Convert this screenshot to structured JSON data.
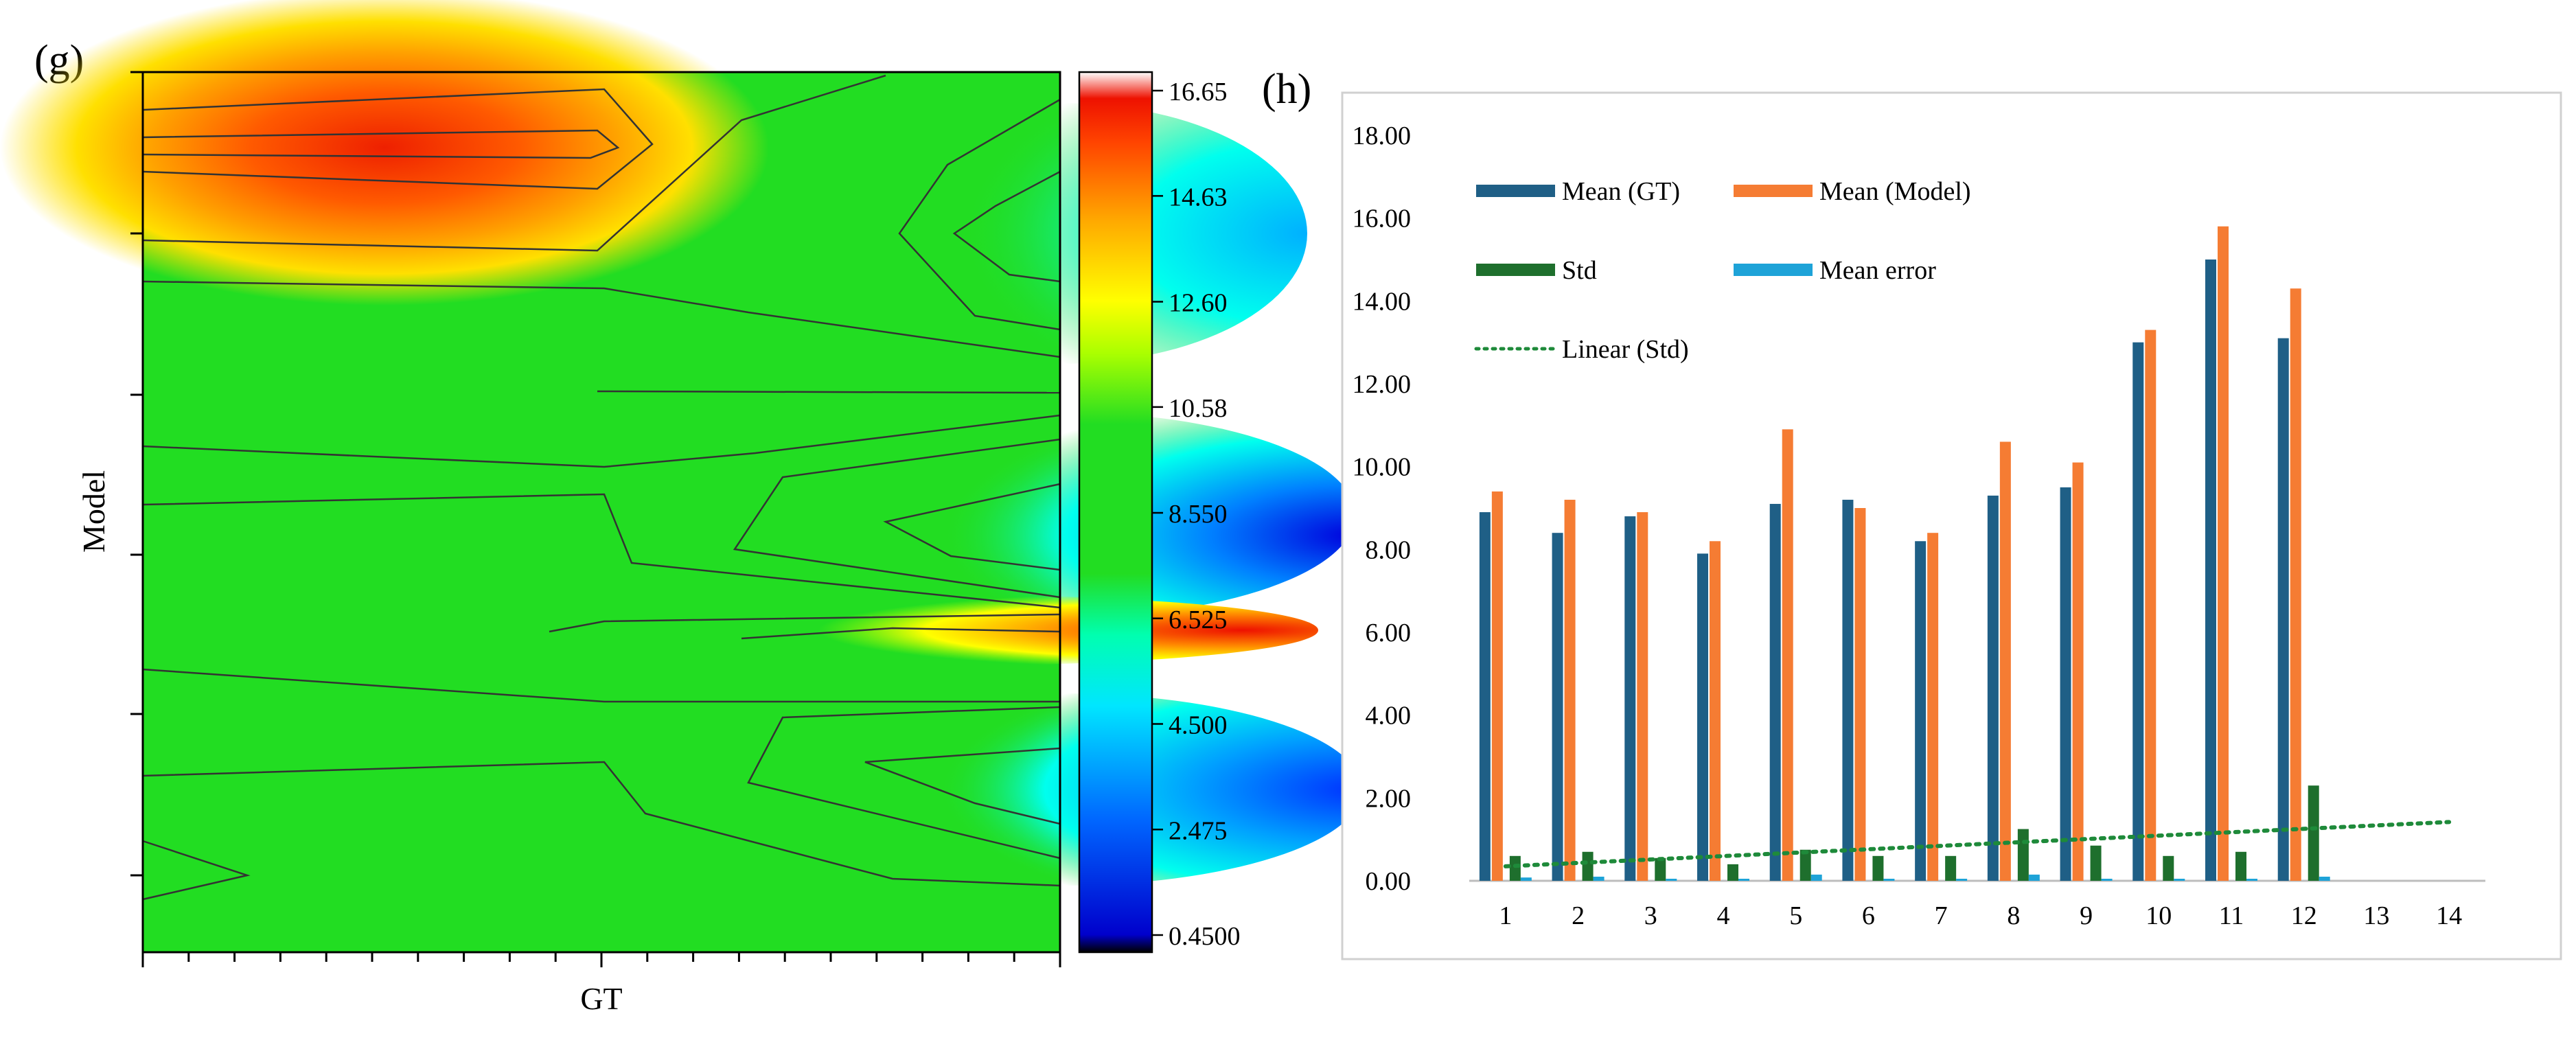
{
  "panel_g": {
    "label": "(g)",
    "xlabel": "GT",
    "ylabel": "Model",
    "colorbar_ticks": [
      "16.65",
      "14.63",
      "12.60",
      "10.58",
      "8.550",
      "6.525",
      "4.500",
      "2.475",
      "0.4500"
    ],
    "colorbar_range": [
      0.45,
      16.65
    ],
    "colors": {
      "green": "#22dd22",
      "contour_line": "#333333"
    }
  },
  "panel_h": {
    "label": "(h)",
    "chart_data": {
      "type": "bar",
      "categories": [
        "1",
        "2",
        "3",
        "4",
        "5",
        "6",
        "7",
        "8",
        "9",
        "10",
        "11",
        "12",
        "13",
        "14"
      ],
      "ylim": [
        0,
        18
      ],
      "yticks": [
        "0.00",
        "2.00",
        "4.00",
        "6.00",
        "8.00",
        "10.00",
        "12.00",
        "14.00",
        "16.00",
        "18.00"
      ],
      "series": [
        {
          "name": "Mean (GT)",
          "color": "#1f5f86",
          "values": [
            8.9,
            8.4,
            8.8,
            7.9,
            9.1,
            9.2,
            8.2,
            9.3,
            9.5,
            13.0,
            15.0,
            13.1,
            null,
            null
          ]
        },
        {
          "name": "Mean (Model)",
          "color": "#f57c33",
          "values": [
            9.4,
            9.2,
            8.9,
            8.2,
            10.9,
            9.0,
            8.4,
            10.6,
            10.1,
            13.3,
            15.8,
            14.3,
            null,
            null
          ]
        },
        {
          "name": "Std",
          "color": "#1e6f2d",
          "values": [
            0.6,
            0.7,
            0.55,
            0.4,
            0.75,
            0.6,
            0.6,
            1.25,
            0.85,
            0.6,
            0.7,
            2.3,
            null,
            null
          ]
        },
        {
          "name": "Mean error",
          "color": "#1ea3d8",
          "values": [
            0.08,
            0.1,
            0.05,
            0.05,
            0.15,
            0.05,
            0.05,
            0.15,
            0.05,
            0.05,
            0.05,
            0.1,
            null,
            null
          ]
        }
      ],
      "trendline": {
        "name": "Linear (Std)",
        "color": "#1e8a3a",
        "start": 0.35,
        "end": 1.42
      },
      "title": "",
      "xlabel": "",
      "ylabel": ""
    }
  }
}
